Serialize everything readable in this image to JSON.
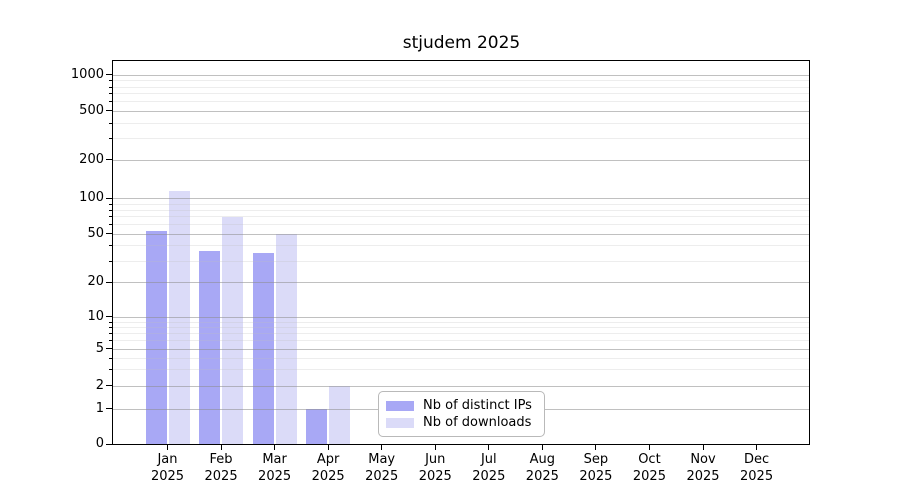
{
  "chart_data": {
    "type": "bar",
    "title": "stjudem 2025",
    "xlabel": "",
    "ylabel": "",
    "scale": "symlog",
    "grid": true,
    "legend_position": "bottom-center-inside",
    "y_ticks": [
      0,
      1,
      2,
      5,
      10,
      20,
      50,
      100,
      200,
      500,
      1000
    ],
    "ylim": [
      0,
      1260
    ],
    "categories": [
      "Jan",
      "Feb",
      "Mar",
      "Apr",
      "May",
      "Jun",
      "Jul",
      "Aug",
      "Sep",
      "Oct",
      "Nov",
      "Dec"
    ],
    "year": "2025",
    "series": [
      {
        "name": "Nb of distinct IPs",
        "color": "#a8a8f5",
        "values": [
          53,
          36,
          35,
          1,
          0,
          0,
          0,
          0,
          0,
          0,
          0,
          0
        ]
      },
      {
        "name": "Nb of downloads",
        "color": "#dbdbf8",
        "values": [
          114,
          69,
          50,
          2,
          0,
          0,
          0,
          0,
          0,
          0,
          0,
          0
        ]
      }
    ]
  }
}
